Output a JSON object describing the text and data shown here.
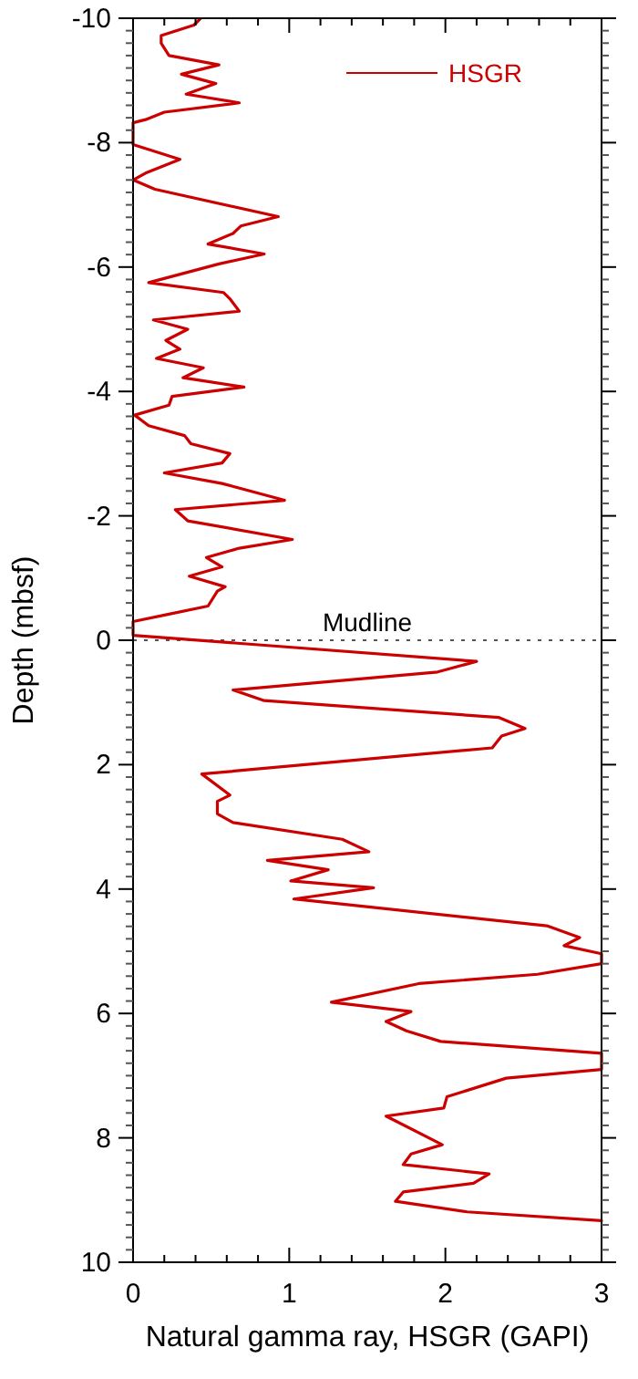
{
  "chart_data": {
    "type": "line",
    "xlabel": "Natural gamma ray, HSGR (GAPI)",
    "ylabel": "Depth (mbsf)",
    "xlim": [
      0,
      3
    ],
    "xticks": [
      0,
      {
        "value": 0.2,
        "label": null
      },
      {
        "value": 0.4,
        "label": null
      },
      {
        "value": 0.6,
        "label": null
      },
      {
        "value": 0.8,
        "label": null
      },
      1,
      {
        "value": 1.2,
        "label": null
      },
      {
        "value": 1.4,
        "label": null
      },
      {
        "value": 1.6,
        "label": null
      },
      {
        "value": 1.8,
        "label": null
      },
      2,
      {
        "value": 2.2,
        "label": null
      },
      {
        "value": 2.4,
        "label": null
      },
      {
        "value": 2.6,
        "label": null
      },
      {
        "value": 2.8,
        "label": null
      },
      3
    ],
    "ylim": [
      10,
      -10
    ],
    "yticks": [
      -10,
      -8,
      -6,
      -4,
      -2,
      0,
      2,
      4,
      6,
      8,
      10
    ],
    "legend": "top right",
    "line_style": "solid",
    "ref_lines": [
      {
        "axis": "y",
        "value": 0,
        "label": "Mudline",
        "color": "#555555",
        "line_style": "dotted"
      }
    ],
    "series": [
      {
        "name": "HSGR",
        "color": "#cc0000",
        "x": [
          0.43,
          0.39,
          0.18,
          0.18,
          0.23,
          0.55,
          0.31,
          0.53,
          0.34,
          0.68,
          0.2,
          0.08,
          0,
          0,
          0.3,
          0.08,
          0,
          0.14,
          0.93,
          0.69,
          0.64,
          0.48,
          0.84,
          0.55,
          0.1,
          0.58,
          0.62,
          0.68,
          0.13,
          0.35,
          0.21,
          0.3,
          0.15,
          0.45,
          0.32,
          0.71,
          0.25,
          0.23,
          0.01,
          0.1,
          0.33,
          0.37,
          0.62,
          0.57,
          0.2,
          0.57,
          0.97,
          0.27,
          0.35,
          1.02,
          0.68,
          0.47,
          0.57,
          0.36,
          0.59,
          0.54,
          0.48,
          0.23,
          0,
          0,
          2.2,
          1.95,
          0.64,
          0.84,
          2.34,
          2.51,
          2.36,
          2.3,
          0.44,
          0.62,
          0.54,
          0.54,
          0.64,
          1.34,
          1.51,
          0.86,
          1.25,
          1.01,
          1.54,
          1.03,
          2.65,
          2.86,
          2.76,
          3,
          3,
          2.59,
          1.83,
          1.27,
          1.78,
          1.62,
          1.75,
          1.97,
          3,
          3,
          2.39,
          2.01,
          1.99,
          1.62,
          1.98,
          1.78,
          1.73,
          2.28,
          2.18,
          1.73,
          1.68,
          2.14,
          3
        ],
        "values": [
          -9.99,
          -9.89,
          -9.72,
          -9.6,
          -9.4,
          -9.25,
          -9.1,
          -8.95,
          -8.78,
          -8.64,
          -8.49,
          -8.37,
          -8.32,
          -7.97,
          -7.73,
          -7.51,
          -7.4,
          -7.25,
          -6.81,
          -6.66,
          -6.54,
          -6.37,
          -6.21,
          -6.05,
          -5.75,
          -5.59,
          -5.49,
          -5.29,
          -5.15,
          -5,
          -4.82,
          -4.68,
          -4.53,
          -4.38,
          -4.22,
          -4.07,
          -3.92,
          -3.78,
          -3.62,
          -3.45,
          -3.29,
          -3.16,
          -3,
          -2.85,
          -2.69,
          -2.52,
          -2.25,
          -2.1,
          -1.92,
          -1.62,
          -1.48,
          -1.33,
          -1.18,
          -1.03,
          -0.86,
          -0.79,
          -0.55,
          -0.42,
          -0.3,
          -0.08,
          0.34,
          0.51,
          0.8,
          0.97,
          1.24,
          1.42,
          1.54,
          1.73,
          2.15,
          2.49,
          2.59,
          2.79,
          2.93,
          3.2,
          3.4,
          3.54,
          3.69,
          3.87,
          3.98,
          4.16,
          4.59,
          4.78,
          4.91,
          5.04,
          5.2,
          5.37,
          5.52,
          5.82,
          5.97,
          6.13,
          6.28,
          6.45,
          6.64,
          6.9,
          7.04,
          7.34,
          7.52,
          7.65,
          8.11,
          8.26,
          8.43,
          8.58,
          8.73,
          8.87,
          9.02,
          9.19,
          9.33
        ]
      }
    ]
  }
}
